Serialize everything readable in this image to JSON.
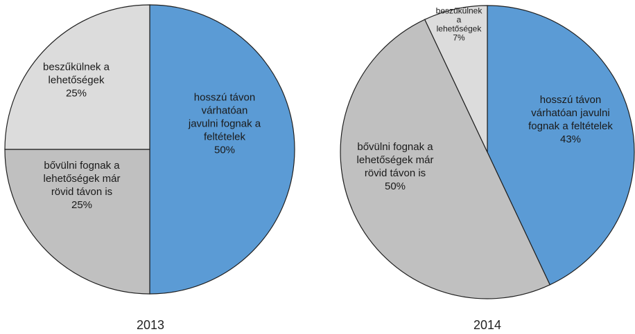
{
  "chart_data": [
    {
      "type": "pie",
      "title": "2013",
      "slices": [
        {
          "label": [
            "hosszú távon",
            "várhatóan",
            "javulni fognak a",
            "feltételek"
          ],
          "value": 50,
          "value_label": "50%",
          "color": "#5b9bd5"
        },
        {
          "label": [
            "bővülni fognak a",
            "lehetőségek már",
            "rövid távon is"
          ],
          "value": 25,
          "value_label": "25%",
          "color": "#c0c0c0"
        },
        {
          "label": [
            "beszűkülnek a",
            "lehetőségek"
          ],
          "value": 25,
          "value_label": "25%",
          "color": "#dcdcdc"
        }
      ]
    },
    {
      "type": "pie",
      "title": "2014",
      "slices": [
        {
          "label": [
            "hosszú távon",
            "várhatóan javulni",
            "fognak a feltételek"
          ],
          "value": 43,
          "value_label": "43%",
          "color": "#5b9bd5"
        },
        {
          "label": [
            "bővülni fognak a",
            "lehetőségek már",
            "rövid távon is"
          ],
          "value": 50,
          "value_label": "50%",
          "color": "#c0c0c0"
        },
        {
          "label": [
            "beszűkülnek",
            "a",
            "lehetőségek"
          ],
          "value": 7,
          "value_label": "7%",
          "color": "#dcdcdc"
        }
      ]
    }
  ]
}
